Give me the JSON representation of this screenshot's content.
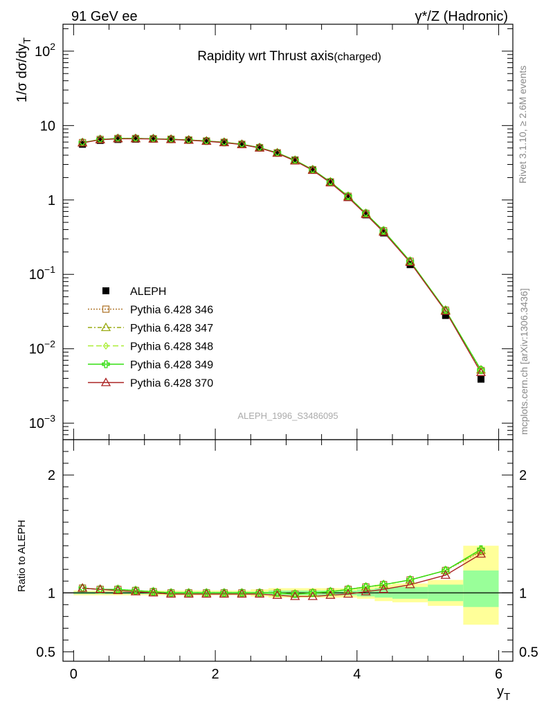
{
  "header": {
    "left": "91 GeV ee",
    "right": "γ*/Z (Hadronic)"
  },
  "side_labels": {
    "rivet": "Rivet 3.1.10, ≥ 2.6M events",
    "mcplots": "mcplots.cern.ch [arXiv:1306.3436]"
  },
  "colors": {
    "ALEPH": "#000000",
    "p346": "#b07830",
    "p347": "#99aa11",
    "p348": "#aaee33",
    "p349": "#33dd11",
    "p370": "#aa2222",
    "band_outer": "#ffff99",
    "band_inner": "#99ff99"
  },
  "chart_data": [
    {
      "type": "line",
      "title": "Rapidity wrt Thrust axis(charged)",
      "title_main": "Rapidity wrt Thrust axis",
      "title_sub": "(charged)",
      "ylabel": "1/σ dσ/dy_T",
      "ylabel_main": "1/σ dσ/dy",
      "ylabel_sub": "T",
      "watermark": "ALEPH_1996_S3486095",
      "xlim": [
        -0.15,
        6.2
      ],
      "ylim": [
        0.0006,
        230
      ],
      "yscale": "log",
      "y_ticks": [
        {
          "value": 0.001,
          "base": "10",
          "exp": "−3"
        },
        {
          "value": 0.01,
          "base": "10",
          "exp": "−2"
        },
        {
          "value": 0.1,
          "base": "10",
          "exp": "−1"
        },
        {
          "value": 1,
          "base": "1",
          "exp": ""
        },
        {
          "value": 10,
          "base": "10",
          "exp": ""
        },
        {
          "value": 100,
          "base": "10",
          "exp": "2"
        }
      ],
      "legend_position": "middle-left",
      "x": [
        0.125,
        0.375,
        0.625,
        0.875,
        1.125,
        1.375,
        1.625,
        1.875,
        2.125,
        2.375,
        2.625,
        2.875,
        3.125,
        3.375,
        3.625,
        3.875,
        4.125,
        4.375,
        4.75,
        5.25,
        5.75
      ],
      "series": [
        {
          "name": "ALEPH",
          "key": "ALEPH",
          "marker": "square",
          "dash": "",
          "values": [
            5.6,
            6.3,
            6.5,
            6.55,
            6.55,
            6.5,
            6.35,
            6.15,
            5.9,
            5.55,
            5.0,
            4.3,
            3.45,
            2.55,
            1.72,
            1.08,
            0.63,
            0.36,
            0.135,
            0.028,
            0.0039
          ]
        },
        {
          "name": "Pythia 6.428 346",
          "key": "p346",
          "marker": "open-square",
          "dash": "2,2",
          "values": [
            5.9,
            6.5,
            6.7,
            6.7,
            6.65,
            6.55,
            6.4,
            6.2,
            5.95,
            5.6,
            5.05,
            4.3,
            3.42,
            2.55,
            1.75,
            1.12,
            0.66,
            0.385,
            0.15,
            0.033,
            0.0051
          ]
        },
        {
          "name": "Pythia 6.428 347",
          "key": "p347",
          "marker": "open-triangle",
          "dash": "6,3,2,3",
          "values": [
            5.9,
            6.5,
            6.7,
            6.7,
            6.65,
            6.55,
            6.4,
            6.2,
            5.95,
            5.6,
            5.05,
            4.3,
            3.42,
            2.55,
            1.75,
            1.12,
            0.66,
            0.385,
            0.15,
            0.033,
            0.0052
          ]
        },
        {
          "name": "Pythia 6.428 348",
          "key": "p348",
          "marker": "open-diamond",
          "dash": "8,4",
          "values": [
            5.9,
            6.5,
            6.7,
            6.7,
            6.65,
            6.55,
            6.4,
            6.2,
            5.95,
            5.6,
            5.05,
            4.3,
            3.42,
            2.55,
            1.75,
            1.12,
            0.66,
            0.385,
            0.15,
            0.033,
            0.0052
          ]
        },
        {
          "name": "Pythia 6.428 349",
          "key": "p349",
          "marker": "open-cross",
          "dash": "",
          "values": [
            5.9,
            6.5,
            6.7,
            6.7,
            6.65,
            6.55,
            6.4,
            6.2,
            5.95,
            5.6,
            5.05,
            4.3,
            3.42,
            2.55,
            1.75,
            1.12,
            0.66,
            0.385,
            0.15,
            0.033,
            0.0052
          ]
        },
        {
          "name": "Pythia 6.428 370",
          "key": "p370",
          "marker": "open-triangle",
          "dash": "",
          "values": [
            5.85,
            6.45,
            6.65,
            6.65,
            6.6,
            6.5,
            6.35,
            6.15,
            5.9,
            5.55,
            5.0,
            4.25,
            3.35,
            2.5,
            1.7,
            1.08,
            0.64,
            0.37,
            0.145,
            0.032,
            0.0048
          ]
        }
      ]
    },
    {
      "type": "line",
      "ylabel": "Ratio to ALEPH",
      "xlabel": "y_T",
      "xlabel_main": "y",
      "xlabel_sub": "T",
      "xlim": [
        -0.15,
        6.2
      ],
      "ylim": [
        0.42,
        2.3
      ],
      "x_ticks": [
        0,
        2,
        4,
        6
      ],
      "y_ticks": [
        0.5,
        1,
        2
      ],
      "bins": [
        [
          0,
          0.25
        ],
        [
          0.25,
          0.5
        ],
        [
          0.5,
          0.75
        ],
        [
          0.75,
          1
        ],
        [
          1,
          1.25
        ],
        [
          1.25,
          1.5
        ],
        [
          1.5,
          1.75
        ],
        [
          1.75,
          2
        ],
        [
          2,
          2.25
        ],
        [
          2.25,
          2.5
        ],
        [
          2.5,
          2.75
        ],
        [
          2.75,
          3
        ],
        [
          3,
          3.25
        ],
        [
          3.25,
          3.5
        ],
        [
          3.5,
          3.75
        ],
        [
          3.75,
          4
        ],
        [
          4,
          4.25
        ],
        [
          4.25,
          4.5
        ],
        [
          4.5,
          5
        ],
        [
          5,
          5.5
        ],
        [
          5.5,
          6
        ]
      ],
      "band_outer": [
        [
          0.98,
          1.02
        ],
        [
          0.98,
          1.02
        ],
        [
          0.98,
          1.02
        ],
        [
          0.98,
          1.02
        ],
        [
          0.98,
          1.02
        ],
        [
          0.98,
          1.02
        ],
        [
          0.98,
          1.02
        ],
        [
          0.98,
          1.02
        ],
        [
          0.98,
          1.02
        ],
        [
          0.98,
          1.02
        ],
        [
          0.97,
          1.03
        ],
        [
          0.96,
          1.04
        ],
        [
          0.96,
          1.04
        ],
        [
          0.96,
          1.04
        ],
        [
          0.96,
          1.04
        ],
        [
          0.96,
          1.04
        ],
        [
          0.95,
          1.05
        ],
        [
          0.93,
          1.07
        ],
        [
          0.92,
          1.08
        ],
        [
          0.89,
          1.11
        ],
        [
          0.73,
          1.4
        ]
      ],
      "band_inner": [
        [
          0.99,
          1.01
        ],
        [
          0.99,
          1.01
        ],
        [
          0.99,
          1.01
        ],
        [
          0.99,
          1.01
        ],
        [
          0.99,
          1.01
        ],
        [
          0.99,
          1.01
        ],
        [
          0.99,
          1.01
        ],
        [
          0.99,
          1.01
        ],
        [
          0.99,
          1.01
        ],
        [
          0.99,
          1.01
        ],
        [
          0.99,
          1.01
        ],
        [
          0.98,
          1.02
        ],
        [
          0.98,
          1.02
        ],
        [
          0.98,
          1.02
        ],
        [
          0.98,
          1.02
        ],
        [
          0.98,
          1.02
        ],
        [
          0.97,
          1.03
        ],
        [
          0.96,
          1.04
        ],
        [
          0.95,
          1.05
        ],
        [
          0.93,
          1.07
        ],
        [
          0.88,
          1.19
        ]
      ],
      "series": [
        {
          "name": "Pythia 6.428 346",
          "key": "p346",
          "values": [
            1.04,
            1.03,
            1.03,
            1.02,
            1.01,
            1.0,
            1.0,
            1.0,
            1.0,
            1.0,
            1.0,
            1.0,
            0.99,
            1.0,
            1.01,
            1.03,
            1.05,
            1.07,
            1.11,
            1.19,
            1.35
          ]
        },
        {
          "name": "Pythia 6.428 347",
          "key": "p347",
          "values": [
            1.04,
            1.03,
            1.03,
            1.02,
            1.01,
            1.0,
            1.0,
            1.0,
            1.0,
            1.0,
            1.0,
            1.0,
            0.99,
            1.0,
            1.01,
            1.03,
            1.05,
            1.07,
            1.11,
            1.19,
            1.36
          ]
        },
        {
          "name": "Pythia 6.428 348",
          "key": "p348",
          "values": [
            1.04,
            1.03,
            1.03,
            1.02,
            1.01,
            1.0,
            1.0,
            1.0,
            1.0,
            1.0,
            1.0,
            1.0,
            0.99,
            1.0,
            1.01,
            1.03,
            1.05,
            1.07,
            1.11,
            1.19,
            1.36
          ]
        },
        {
          "name": "Pythia 6.428 349",
          "key": "p349",
          "values": [
            1.04,
            1.03,
            1.03,
            1.02,
            1.01,
            1.0,
            1.0,
            1.0,
            1.0,
            1.0,
            1.0,
            1.0,
            0.99,
            1.0,
            1.01,
            1.03,
            1.05,
            1.07,
            1.11,
            1.19,
            1.37
          ]
        },
        {
          "name": "Pythia 6.428 370",
          "key": "p370",
          "values": [
            1.04,
            1.03,
            1.02,
            1.01,
            1.0,
            0.99,
            0.99,
            0.99,
            0.99,
            0.99,
            0.99,
            0.98,
            0.97,
            0.97,
            0.98,
            0.99,
            1.01,
            1.03,
            1.07,
            1.15,
            1.33
          ]
        }
      ]
    }
  ]
}
